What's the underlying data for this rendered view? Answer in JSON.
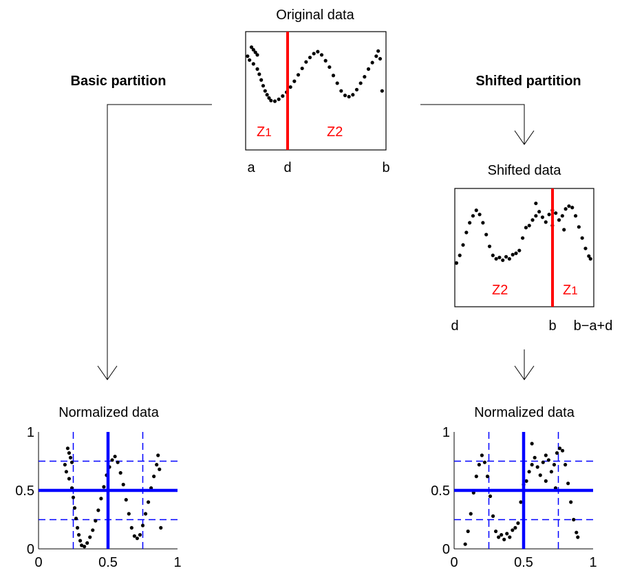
{
  "labels": {
    "basic_partition": "Basic partition",
    "shifted_partition": "Shifted partition",
    "original_title": "Original data",
    "shifted_title": "Shifted data",
    "normalized_title_left": "Normalized data",
    "normalized_title_right": "Normalized data",
    "original_axis": {
      "a": "a",
      "d": "d",
      "b": "b"
    },
    "shifted_axis": {
      "d": "d",
      "b": "b",
      "bad": "b−a+d"
    },
    "zone_z1": "Z",
    "zone_z1_sub": "1",
    "zone_z2": "Z2",
    "zone_z1_shifted": "Z",
    "zone_z1_shifted_sub": "1",
    "zone_z2_shifted": "Z2"
  },
  "colors": {
    "split": "#ff0000",
    "grid": "#0000ff",
    "points": "#000000",
    "arrows": "#000000"
  },
  "chart_data": [
    {
      "type": "scatter",
      "title": "Normalized data",
      "xlim": [
        0,
        1
      ],
      "ylim": [
        0,
        1
      ],
      "xticks": [
        "0",
        "0.5",
        "1"
      ],
      "yticks": [
        "0",
        "0.5",
        "1"
      ],
      "partition_lines_solid": [
        0.5
      ],
      "partition_lines_dashed": [
        0.25,
        0.75
      ],
      "points": [
        {
          "x": 0.22,
          "y": 0.82
        },
        {
          "x": 0.23,
          "y": 0.78
        },
        {
          "x": 0.24,
          "y": 0.74
        },
        {
          "x": 0.21,
          "y": 0.86
        },
        {
          "x": 0.19,
          "y": 0.72
        },
        {
          "x": 0.2,
          "y": 0.66
        },
        {
          "x": 0.22,
          "y": 0.6
        },
        {
          "x": 0.24,
          "y": 0.52
        },
        {
          "x": 0.25,
          "y": 0.44
        },
        {
          "x": 0.26,
          "y": 0.35
        },
        {
          "x": 0.27,
          "y": 0.26
        },
        {
          "x": 0.28,
          "y": 0.18
        },
        {
          "x": 0.29,
          "y": 0.12
        },
        {
          "x": 0.3,
          "y": 0.07
        },
        {
          "x": 0.31,
          "y": 0.03
        },
        {
          "x": 0.33,
          "y": 0.02
        },
        {
          "x": 0.35,
          "y": 0.05
        },
        {
          "x": 0.37,
          "y": 0.1
        },
        {
          "x": 0.39,
          "y": 0.16
        },
        {
          "x": 0.41,
          "y": 0.24
        },
        {
          "x": 0.43,
          "y": 0.33
        },
        {
          "x": 0.45,
          "y": 0.43
        },
        {
          "x": 0.47,
          "y": 0.53
        },
        {
          "x": 0.49,
          "y": 0.63
        },
        {
          "x": 0.51,
          "y": 0.7
        },
        {
          "x": 0.53,
          "y": 0.76
        },
        {
          "x": 0.55,
          "y": 0.79
        },
        {
          "x": 0.57,
          "y": 0.74
        },
        {
          "x": 0.59,
          "y": 0.65
        },
        {
          "x": 0.61,
          "y": 0.55
        },
        {
          "x": 0.63,
          "y": 0.42
        },
        {
          "x": 0.65,
          "y": 0.3
        },
        {
          "x": 0.67,
          "y": 0.18
        },
        {
          "x": 0.69,
          "y": 0.11
        },
        {
          "x": 0.71,
          "y": 0.09
        },
        {
          "x": 0.73,
          "y": 0.12
        },
        {
          "x": 0.75,
          "y": 0.2
        },
        {
          "x": 0.77,
          "y": 0.3
        },
        {
          "x": 0.79,
          "y": 0.4
        },
        {
          "x": 0.81,
          "y": 0.52
        },
        {
          "x": 0.83,
          "y": 0.62
        },
        {
          "x": 0.85,
          "y": 0.72
        },
        {
          "x": 0.86,
          "y": 0.8
        },
        {
          "x": 0.87,
          "y": 0.68
        },
        {
          "x": 0.88,
          "y": 0.18
        }
      ]
    },
    {
      "type": "scatter",
      "title": "Normalized data",
      "xlim": [
        0,
        1
      ],
      "ylim": [
        0,
        1
      ],
      "xticks": [
        "0",
        "0.5",
        "1"
      ],
      "yticks": [
        "0",
        "0.5",
        "1"
      ],
      "partition_lines_solid": [
        0.5
      ],
      "partition_lines_dashed": [
        0.25,
        0.75
      ],
      "points": [
        {
          "x": 0.08,
          "y": 0.04
        },
        {
          "x": 0.1,
          "y": 0.15
        },
        {
          "x": 0.12,
          "y": 0.3
        },
        {
          "x": 0.14,
          "y": 0.48
        },
        {
          "x": 0.16,
          "y": 0.62
        },
        {
          "x": 0.18,
          "y": 0.72
        },
        {
          "x": 0.2,
          "y": 0.8
        },
        {
          "x": 0.22,
          "y": 0.74
        },
        {
          "x": 0.24,
          "y": 0.62
        },
        {
          "x": 0.26,
          "y": 0.45
        },
        {
          "x": 0.28,
          "y": 0.28
        },
        {
          "x": 0.3,
          "y": 0.15
        },
        {
          "x": 0.32,
          "y": 0.1
        },
        {
          "x": 0.34,
          "y": 0.12
        },
        {
          "x": 0.36,
          "y": 0.08
        },
        {
          "x": 0.38,
          "y": 0.13
        },
        {
          "x": 0.4,
          "y": 0.1
        },
        {
          "x": 0.42,
          "y": 0.16
        },
        {
          "x": 0.44,
          "y": 0.18
        },
        {
          "x": 0.46,
          "y": 0.22
        },
        {
          "x": 0.48,
          "y": 0.4
        },
        {
          "x": 0.5,
          "y": 0.55
        },
        {
          "x": 0.52,
          "y": 0.58
        },
        {
          "x": 0.54,
          "y": 0.66
        },
        {
          "x": 0.56,
          "y": 0.72
        },
        {
          "x": 0.58,
          "y": 0.78
        },
        {
          "x": 0.6,
          "y": 0.7
        },
        {
          "x": 0.62,
          "y": 0.63
        },
        {
          "x": 0.64,
          "y": 0.74
        },
        {
          "x": 0.66,
          "y": 0.8
        },
        {
          "x": 0.68,
          "y": 0.76
        },
        {
          "x": 0.7,
          "y": 0.66
        },
        {
          "x": 0.72,
          "y": 0.72
        },
        {
          "x": 0.74,
          "y": 0.82
        },
        {
          "x": 0.76,
          "y": 0.86
        },
        {
          "x": 0.78,
          "y": 0.84
        },
        {
          "x": 0.8,
          "y": 0.72
        },
        {
          "x": 0.82,
          "y": 0.56
        },
        {
          "x": 0.84,
          "y": 0.4
        },
        {
          "x": 0.86,
          "y": 0.25
        },
        {
          "x": 0.88,
          "y": 0.14
        },
        {
          "x": 0.89,
          "y": 0.1
        },
        {
          "x": 0.73,
          "y": 0.52
        },
        {
          "x": 0.66,
          "y": 0.58
        },
        {
          "x": 0.56,
          "y": 0.9
        }
      ]
    }
  ]
}
